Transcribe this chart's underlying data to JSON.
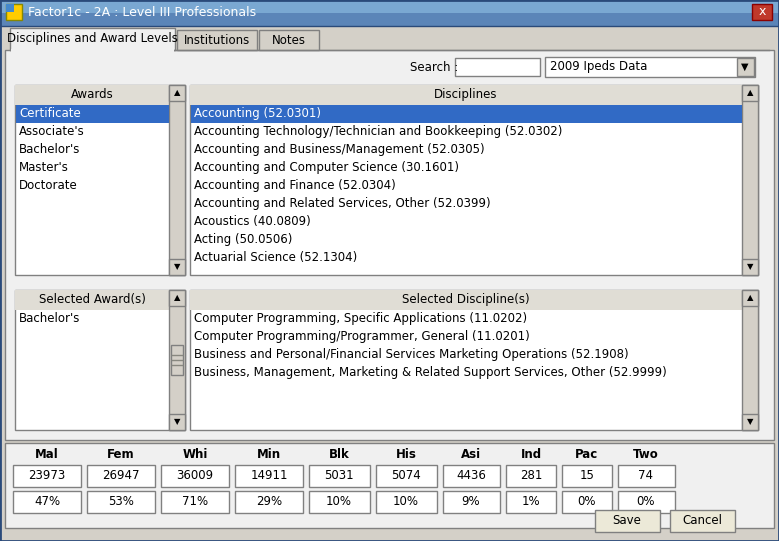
{
  "title": "Factor1c - 2A : Level III Professionals",
  "dropdown_label": "2009 Ipeds Data",
  "tabs": [
    "Disciplines and Award Levels",
    "Institutions",
    "Notes"
  ],
  "active_tab": 0,
  "search_label": "Search :",
  "awards_header": "Awards",
  "awards_list": [
    "Certificate",
    "Associate's",
    "Bachelor's",
    "Master's",
    "Doctorate"
  ],
  "awards_selected": "Certificate",
  "disciplines_header": "Disciplines",
  "disciplines_list": [
    "Accounting (52.0301)",
    "Accounting Technology/Technician and Bookkeeping (52.0302)",
    "Accounting and Business/Management (52.0305)",
    "Accounting and Computer Science (30.1601)",
    "Accounting and Finance (52.0304)",
    "Accounting and Related Services, Other (52.0399)",
    "Acoustics (40.0809)",
    "Acting (50.0506)",
    "Actuarial Science (52.1304)"
  ],
  "disciplines_selected": "Accounting (52.0301)",
  "selected_awards_header": "Selected Award(s)",
  "selected_awards": [
    "Bachelor's"
  ],
  "selected_disciplines_header": "Selected Discipline(s)",
  "selected_disciplines": [
    "Computer Programming, Specific Applications (11.0202)",
    "Computer Programming/Programmer, General (11.0201)",
    "Business and Personal/Financial Services Marketing Operations (52.1908)",
    "Business, Management, Marketing & Related Support Services, Other (52.9999)"
  ],
  "stats_headers": [
    "Mal",
    "Fem",
    "Whi",
    "Min",
    "Blk",
    "His",
    "Asi",
    "Ind",
    "Pac",
    "Two"
  ],
  "stats_values": [
    "23973",
    "26947",
    "36009",
    "14911",
    "5031",
    "5074",
    "4436",
    "281",
    "15",
    "74"
  ],
  "stats_percents": [
    "47%",
    "53%",
    "71%",
    "29%",
    "10%",
    "10%",
    "9%",
    "1%",
    "0%",
    "0%"
  ],
  "bg_color": "#d4d0c8",
  "title_bar_color": "#4a6fa5",
  "title_bar_gradient_start": "#6b9fd4",
  "title_bar_gradient_end": "#3a5f8a",
  "white": "#ffffff",
  "listbox_bg": "#ffffff",
  "selected_row_color": "#316ac5",
  "selected_text_color": "#ffffff",
  "border_color": "#808080",
  "tab_active_bg": "#f0f0f0",
  "tab_inactive_bg": "#d4d0c8",
  "button_bg": "#ece9d8",
  "text_color": "#000000",
  "close_btn_color": "#c0392b",
  "font_size": 8,
  "header_font_size": 8
}
